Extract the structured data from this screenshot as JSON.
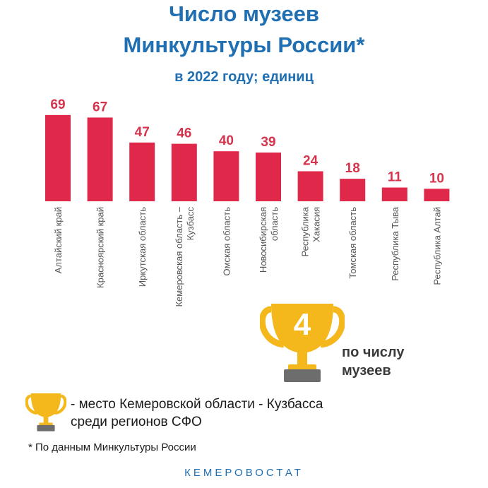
{
  "header": {
    "title_line1": "Число музеев",
    "title_line2": "Минкультуры России*",
    "subtitle": "в 2022 году; единиц"
  },
  "chart_data": {
    "type": "bar",
    "categories": [
      [
        "Алтайский край"
      ],
      [
        "Красноярский край"
      ],
      [
        "Иркутская область"
      ],
      [
        "Кемеровская область –",
        "Кузбасс"
      ],
      [
        "Омская область"
      ],
      [
        "Новосибирская",
        "область"
      ],
      [
        "Республика",
        "Хакасия"
      ],
      [
        "Томская область"
      ],
      [
        "Республика Тыва"
      ],
      [
        "Республика Алтай"
      ]
    ],
    "values": [
      69,
      67,
      47,
      46,
      40,
      39,
      24,
      18,
      11,
      10
    ],
    "bar_color": "#e0284a",
    "value_label_color": "#d6344d"
  },
  "rank_badge": {
    "rank": "4",
    "caption_line1": "по числу",
    "caption_line2": "музеев",
    "icon": "trophy-icon",
    "cup_color": "#f5b81c",
    "base_color": "#6d6d6d"
  },
  "legend": {
    "icon": "trophy-icon",
    "line1": "- место Кемеровской области - Кузбасса",
    "line2": "среди регионов СФО"
  },
  "footnote": "* По данным Минкультуры России",
  "brand": "КЕМЕРОВОСТАТ"
}
